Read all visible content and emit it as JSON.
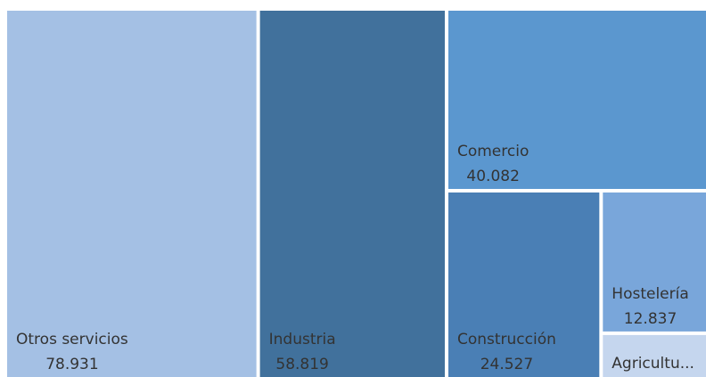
{
  "chart_data": {
    "type": "treemap",
    "categories": [
      "Otros servicios",
      "Industria",
      "Comercio",
      "Construcción",
      "Hostelería",
      "Agricultu..."
    ],
    "values": [
      78931,
      58819,
      40082,
      24527,
      12837,
      4100
    ],
    "value_labels": [
      "78.931",
      "58.819",
      "40.082",
      "24.527",
      "12.837",
      null
    ],
    "colors": [
      "#a4c0e4",
      "#41719c",
      "#5b97cf",
      "#4a7fb5",
      "#79a6da",
      "#c5d6ee"
    ]
  }
}
